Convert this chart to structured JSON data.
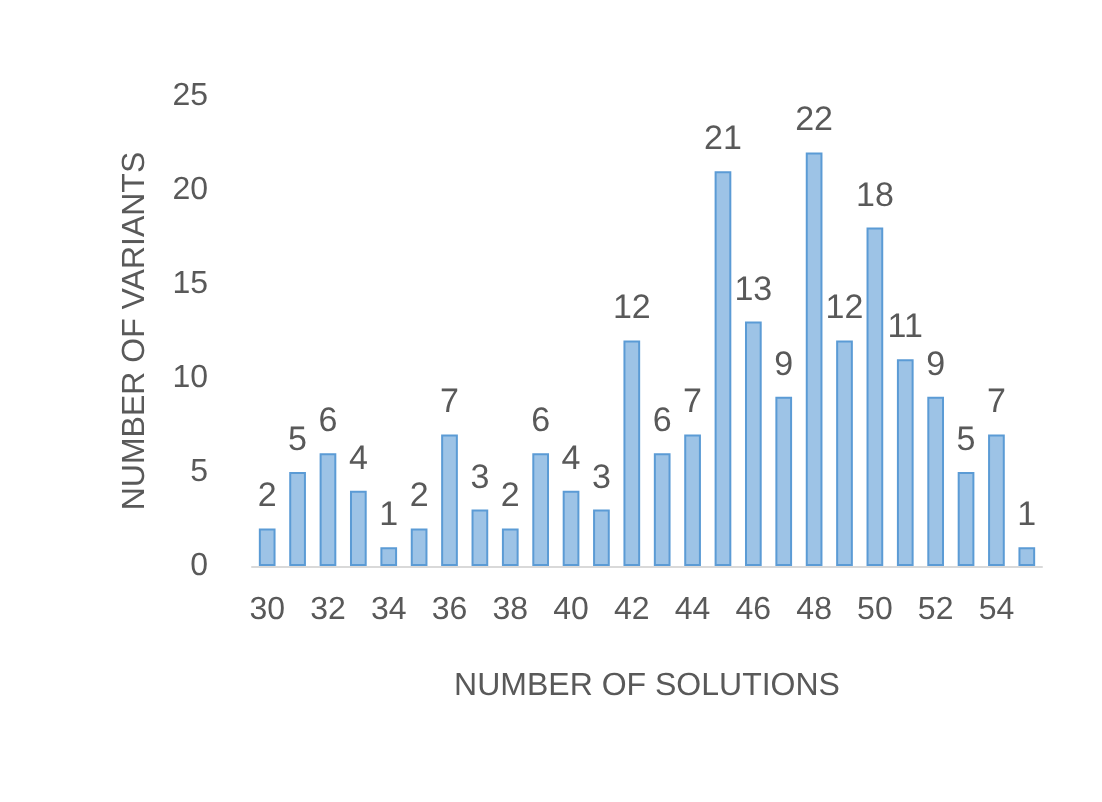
{
  "chart_data": {
    "type": "bar",
    "xlabel": "NUMBER OF SOLUTIONS",
    "ylabel": "NUMBER OF VARIANTS",
    "categories": [
      "30",
      null,
      "32",
      null,
      "34",
      null,
      "36",
      null,
      "38",
      null,
      "40",
      null,
      "42",
      null,
      "44",
      null,
      "46",
      null,
      "48",
      null,
      "50",
      null,
      "52",
      null,
      "54",
      null
    ],
    "values": [
      2,
      5,
      6,
      4,
      1,
      2,
      7,
      3,
      2,
      6,
      4,
      3,
      12,
      6,
      7,
      21,
      13,
      9,
      22,
      12,
      18,
      11,
      9,
      5,
      7,
      1
    ],
    "color": "#9dc3e6",
    "ylim": [
      0,
      25
    ],
    "yticks": [
      0,
      5,
      10,
      15,
      20,
      25
    ],
    "grid": false,
    "data_labels": true
  }
}
